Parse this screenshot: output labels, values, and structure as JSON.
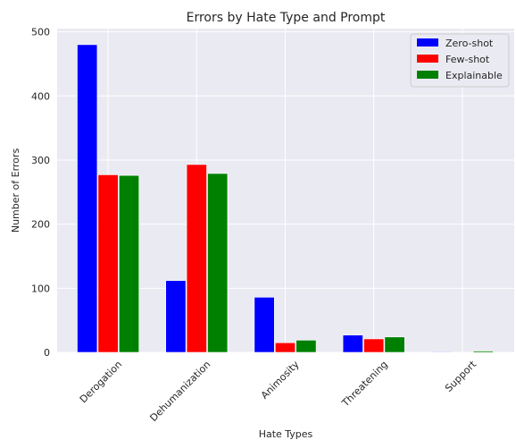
{
  "chart_data": {
    "type": "bar",
    "title": "Errors by Hate Type and Prompt",
    "xlabel": "Hate Types",
    "ylabel": "Number of Errors",
    "categories": [
      "Derogation",
      "Dehumanization",
      "Animosity",
      "Threatening",
      "Support"
    ],
    "series": [
      {
        "name": "Zero-shot",
        "color": "#0000ff",
        "values": [
          480,
          112,
          86,
          27,
          1
        ]
      },
      {
        "name": "Few-shot",
        "color": "#ff0000",
        "values": [
          277,
          293,
          15,
          21,
          0
        ]
      },
      {
        "name": "Explainable",
        "color": "#008000",
        "values": [
          276,
          279,
          19,
          24,
          2
        ]
      }
    ],
    "ylim": [
      0,
      505
    ],
    "yticks": [
      0,
      100,
      200,
      300,
      400,
      500
    ],
    "grid": true,
    "legend_position": "top-right",
    "background": "#eaeaf2"
  }
}
